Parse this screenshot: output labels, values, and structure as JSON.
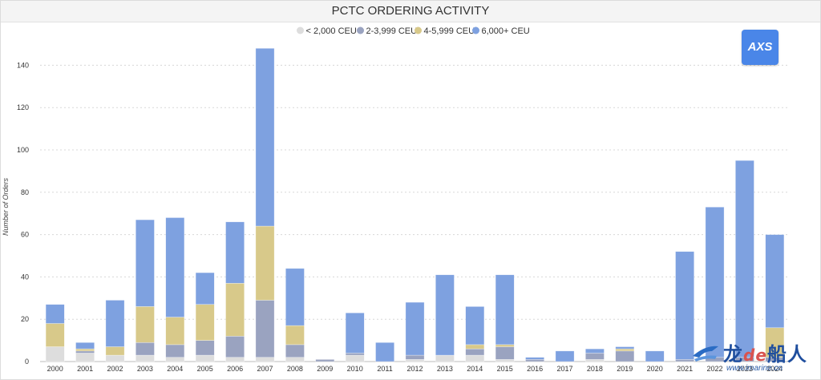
{
  "chart_data": {
    "type": "bar",
    "stacked": true,
    "title": "PCTC ORDERING ACTIVITY",
    "xlabel": "",
    "ylabel": "Number of Orders",
    "ylim": [
      0,
      150
    ],
    "yticks": [
      0,
      20,
      40,
      60,
      80,
      100,
      120,
      140
    ],
    "grid": true,
    "legend_position": "top-center",
    "categories": [
      "2000",
      "2001",
      "2002",
      "2003",
      "2004",
      "2005",
      "2006",
      "2007",
      "2008",
      "2009",
      "2010",
      "2011",
      "2012",
      "2013",
      "2014",
      "2015",
      "2016",
      "2017",
      "2018",
      "2019",
      "2020",
      "2021",
      "2022",
      "2023",
      "2024"
    ],
    "series": [
      {
        "name": "< 2,000 CEU",
        "color": "#dddddd",
        "values": [
          7,
          4,
          3,
          3,
          2,
          3,
          2,
          2,
          2,
          0,
          3,
          0,
          1,
          3,
          3,
          1,
          0,
          0,
          1,
          0,
          0,
          0,
          0,
          0,
          0
        ]
      },
      {
        "name": "2-3,999 CEU",
        "color": "#9aa3c0",
        "values": [
          0,
          1,
          0,
          6,
          6,
          7,
          10,
          27,
          6,
          1,
          1,
          0,
          2,
          0,
          3,
          6,
          1,
          0,
          3,
          5,
          0,
          1,
          2,
          2,
          2
        ]
      },
      {
        "name": "4-5,999 CEU",
        "color": "#d8c98a",
        "values": [
          11,
          1,
          4,
          17,
          13,
          17,
          25,
          35,
          9,
          0,
          0,
          0,
          0,
          0,
          2,
          1,
          0,
          0,
          0,
          1,
          0,
          0,
          0,
          0,
          14
        ]
      },
      {
        "name": "6,000+ CEU",
        "color": "#7ea1e0",
        "values": [
          9,
          3,
          22,
          41,
          47,
          15,
          29,
          84,
          27,
          0,
          19,
          9,
          25,
          38,
          18,
          33,
          1,
          5,
          2,
          1,
          5,
          51,
          71,
          93,
          44
        ]
      }
    ]
  },
  "logo": {
    "text": "AXS"
  },
  "watermark": {
    "brand_a": "龙",
    "brand_b": "de",
    "brand_c": "船人",
    "url": "www.imarine.cn"
  }
}
